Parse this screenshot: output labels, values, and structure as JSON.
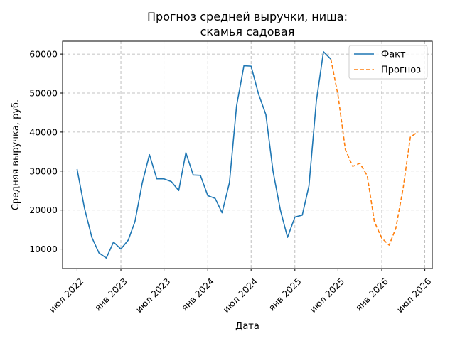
{
  "chart_data": {
    "type": "line",
    "title": [
      "Прогноз средней выручки, ниша:",
      "скамья садовая"
    ],
    "xlabel": "Дата",
    "ylabel": "Средняя выручка, руб.",
    "ylim": [
      5000,
      63300
    ],
    "xlim": [
      "2022-05-01",
      "2026-08-01"
    ],
    "y_ticks": [
      10000,
      20000,
      30000,
      40000,
      50000,
      60000
    ],
    "y_tick_labels": [
      "10000",
      "20000",
      "30000",
      "40000",
      "50000",
      "60000"
    ],
    "x_ticks": [
      "2022-07-01",
      "2023-01-01",
      "2023-07-01",
      "2024-01-01",
      "2024-07-01",
      "2025-01-01",
      "2025-07-01",
      "2026-01-01",
      "2026-07-01"
    ],
    "x_tick_labels": [
      "июл 2022",
      "янв 2023",
      "июл 2023",
      "янв 2024",
      "июл 2024",
      "янв 2025",
      "июл 2025",
      "янв 2026",
      "июл 2026"
    ],
    "grid": true,
    "legend_position": "top-right",
    "series": [
      {
        "name": "Факт",
        "color": "#1f77b4",
        "style": "solid",
        "points": [
          [
            "2022-07-01",
            30500
          ],
          [
            "2022-08-01",
            20500
          ],
          [
            "2022-09-01",
            13000
          ],
          [
            "2022-10-01",
            9000
          ],
          [
            "2022-11-01",
            7700
          ],
          [
            "2022-12-01",
            11800
          ],
          [
            "2023-01-01",
            10000
          ],
          [
            "2023-02-01",
            12300
          ],
          [
            "2023-03-01",
            17000
          ],
          [
            "2023-04-01",
            27000
          ],
          [
            "2023-05-01",
            34200
          ],
          [
            "2023-06-01",
            28000
          ],
          [
            "2023-07-01",
            28000
          ],
          [
            "2023-08-01",
            27300
          ],
          [
            "2023-09-01",
            25000
          ],
          [
            "2023-10-01",
            34700
          ],
          [
            "2023-11-01",
            29000
          ],
          [
            "2023-12-01",
            28900
          ],
          [
            "2024-01-01",
            23700
          ],
          [
            "2024-02-01",
            23000
          ],
          [
            "2024-03-01",
            19300
          ],
          [
            "2024-04-01",
            27000
          ],
          [
            "2024-05-01",
            46700
          ],
          [
            "2024-06-01",
            57000
          ],
          [
            "2024-07-01",
            56900
          ],
          [
            "2024-08-01",
            49800
          ],
          [
            "2024-09-01",
            44500
          ],
          [
            "2024-10-01",
            30000
          ],
          [
            "2024-11-01",
            20000
          ],
          [
            "2024-12-01",
            13000
          ],
          [
            "2025-01-01",
            18200
          ],
          [
            "2025-02-01",
            18700
          ],
          [
            "2025-03-01",
            26200
          ],
          [
            "2025-04-01",
            47900
          ],
          [
            "2025-05-01",
            60600
          ],
          [
            "2025-06-01",
            58700
          ]
        ]
      },
      {
        "name": "Прогноз",
        "color": "#ff7f0e",
        "style": "dashed",
        "points": [
          [
            "2025-06-01",
            58700
          ],
          [
            "2025-07-01",
            49500
          ],
          [
            "2025-08-01",
            35500
          ],
          [
            "2025-09-01",
            31200
          ],
          [
            "2025-10-01",
            32000
          ],
          [
            "2025-11-01",
            28800
          ],
          [
            "2025-12-01",
            17000
          ],
          [
            "2026-01-01",
            12800
          ],
          [
            "2026-02-01",
            11000
          ],
          [
            "2026-03-01",
            15300
          ],
          [
            "2026-04-01",
            25700
          ],
          [
            "2026-05-01",
            38700
          ],
          [
            "2026-06-01",
            40000
          ]
        ]
      }
    ]
  }
}
